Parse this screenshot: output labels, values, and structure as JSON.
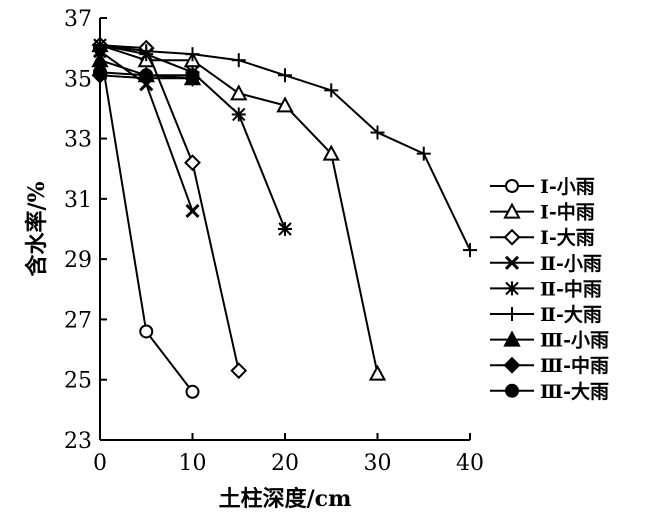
{
  "chart_data": {
    "type": "line",
    "xlabel": "土柱深度/cm",
    "ylabel": "含水率/%",
    "xlim": [
      0,
      40
    ],
    "ylim": [
      23,
      37
    ],
    "xticks": [
      0,
      10,
      20,
      30,
      40
    ],
    "yticks": [
      23,
      25,
      27,
      29,
      31,
      33,
      35,
      37
    ],
    "grid": false,
    "legend_position": "right",
    "series": [
      {
        "name": "Ⅰ-小雨",
        "marker": "circle-open",
        "x": [
          0,
          5,
          10
        ],
        "y": [
          36.0,
          26.6,
          24.6
        ]
      },
      {
        "name": "Ⅰ-中雨",
        "marker": "triangle-open",
        "x": [
          0,
          5,
          10,
          15,
          20,
          25,
          30
        ],
        "y": [
          36.1,
          35.6,
          35.6,
          34.5,
          34.1,
          32.5,
          25.2
        ]
      },
      {
        "name": "Ⅰ-大雨",
        "marker": "diamond-open",
        "x": [
          0,
          5,
          10,
          15
        ],
        "y": [
          36.1,
          36.0,
          32.2,
          25.3
        ]
      },
      {
        "name": "Ⅱ-小雨",
        "marker": "x",
        "x": [
          0,
          5,
          10
        ],
        "y": [
          35.9,
          34.8,
          30.6
        ]
      },
      {
        "name": "Ⅱ-中雨",
        "marker": "asterisk",
        "x": [
          0,
          5,
          10,
          15,
          20
        ],
        "y": [
          36.1,
          35.8,
          35.2,
          33.8,
          30.0
        ]
      },
      {
        "name": "Ⅱ-大雨",
        "marker": "plus",
        "x": [
          0,
          5,
          10,
          15,
          20,
          25,
          30,
          35,
          40
        ],
        "y": [
          36.1,
          35.9,
          35.8,
          35.6,
          35.1,
          34.6,
          33.2,
          32.5,
          29.3
        ]
      },
      {
        "name": "Ⅲ-小雨",
        "marker": "triangle-filled",
        "x": [
          0,
          5,
          10
        ],
        "y": [
          35.6,
          35.1,
          35.0
        ]
      },
      {
        "name": "Ⅲ-中雨",
        "marker": "diamond-filled",
        "x": [
          0,
          5,
          10
        ],
        "y": [
          35.1,
          35.0,
          35.0
        ]
      },
      {
        "name": "Ⅲ-大雨",
        "marker": "circle-filled",
        "x": [
          0,
          5,
          10
        ],
        "y": [
          35.2,
          35.1,
          35.1
        ]
      }
    ]
  }
}
